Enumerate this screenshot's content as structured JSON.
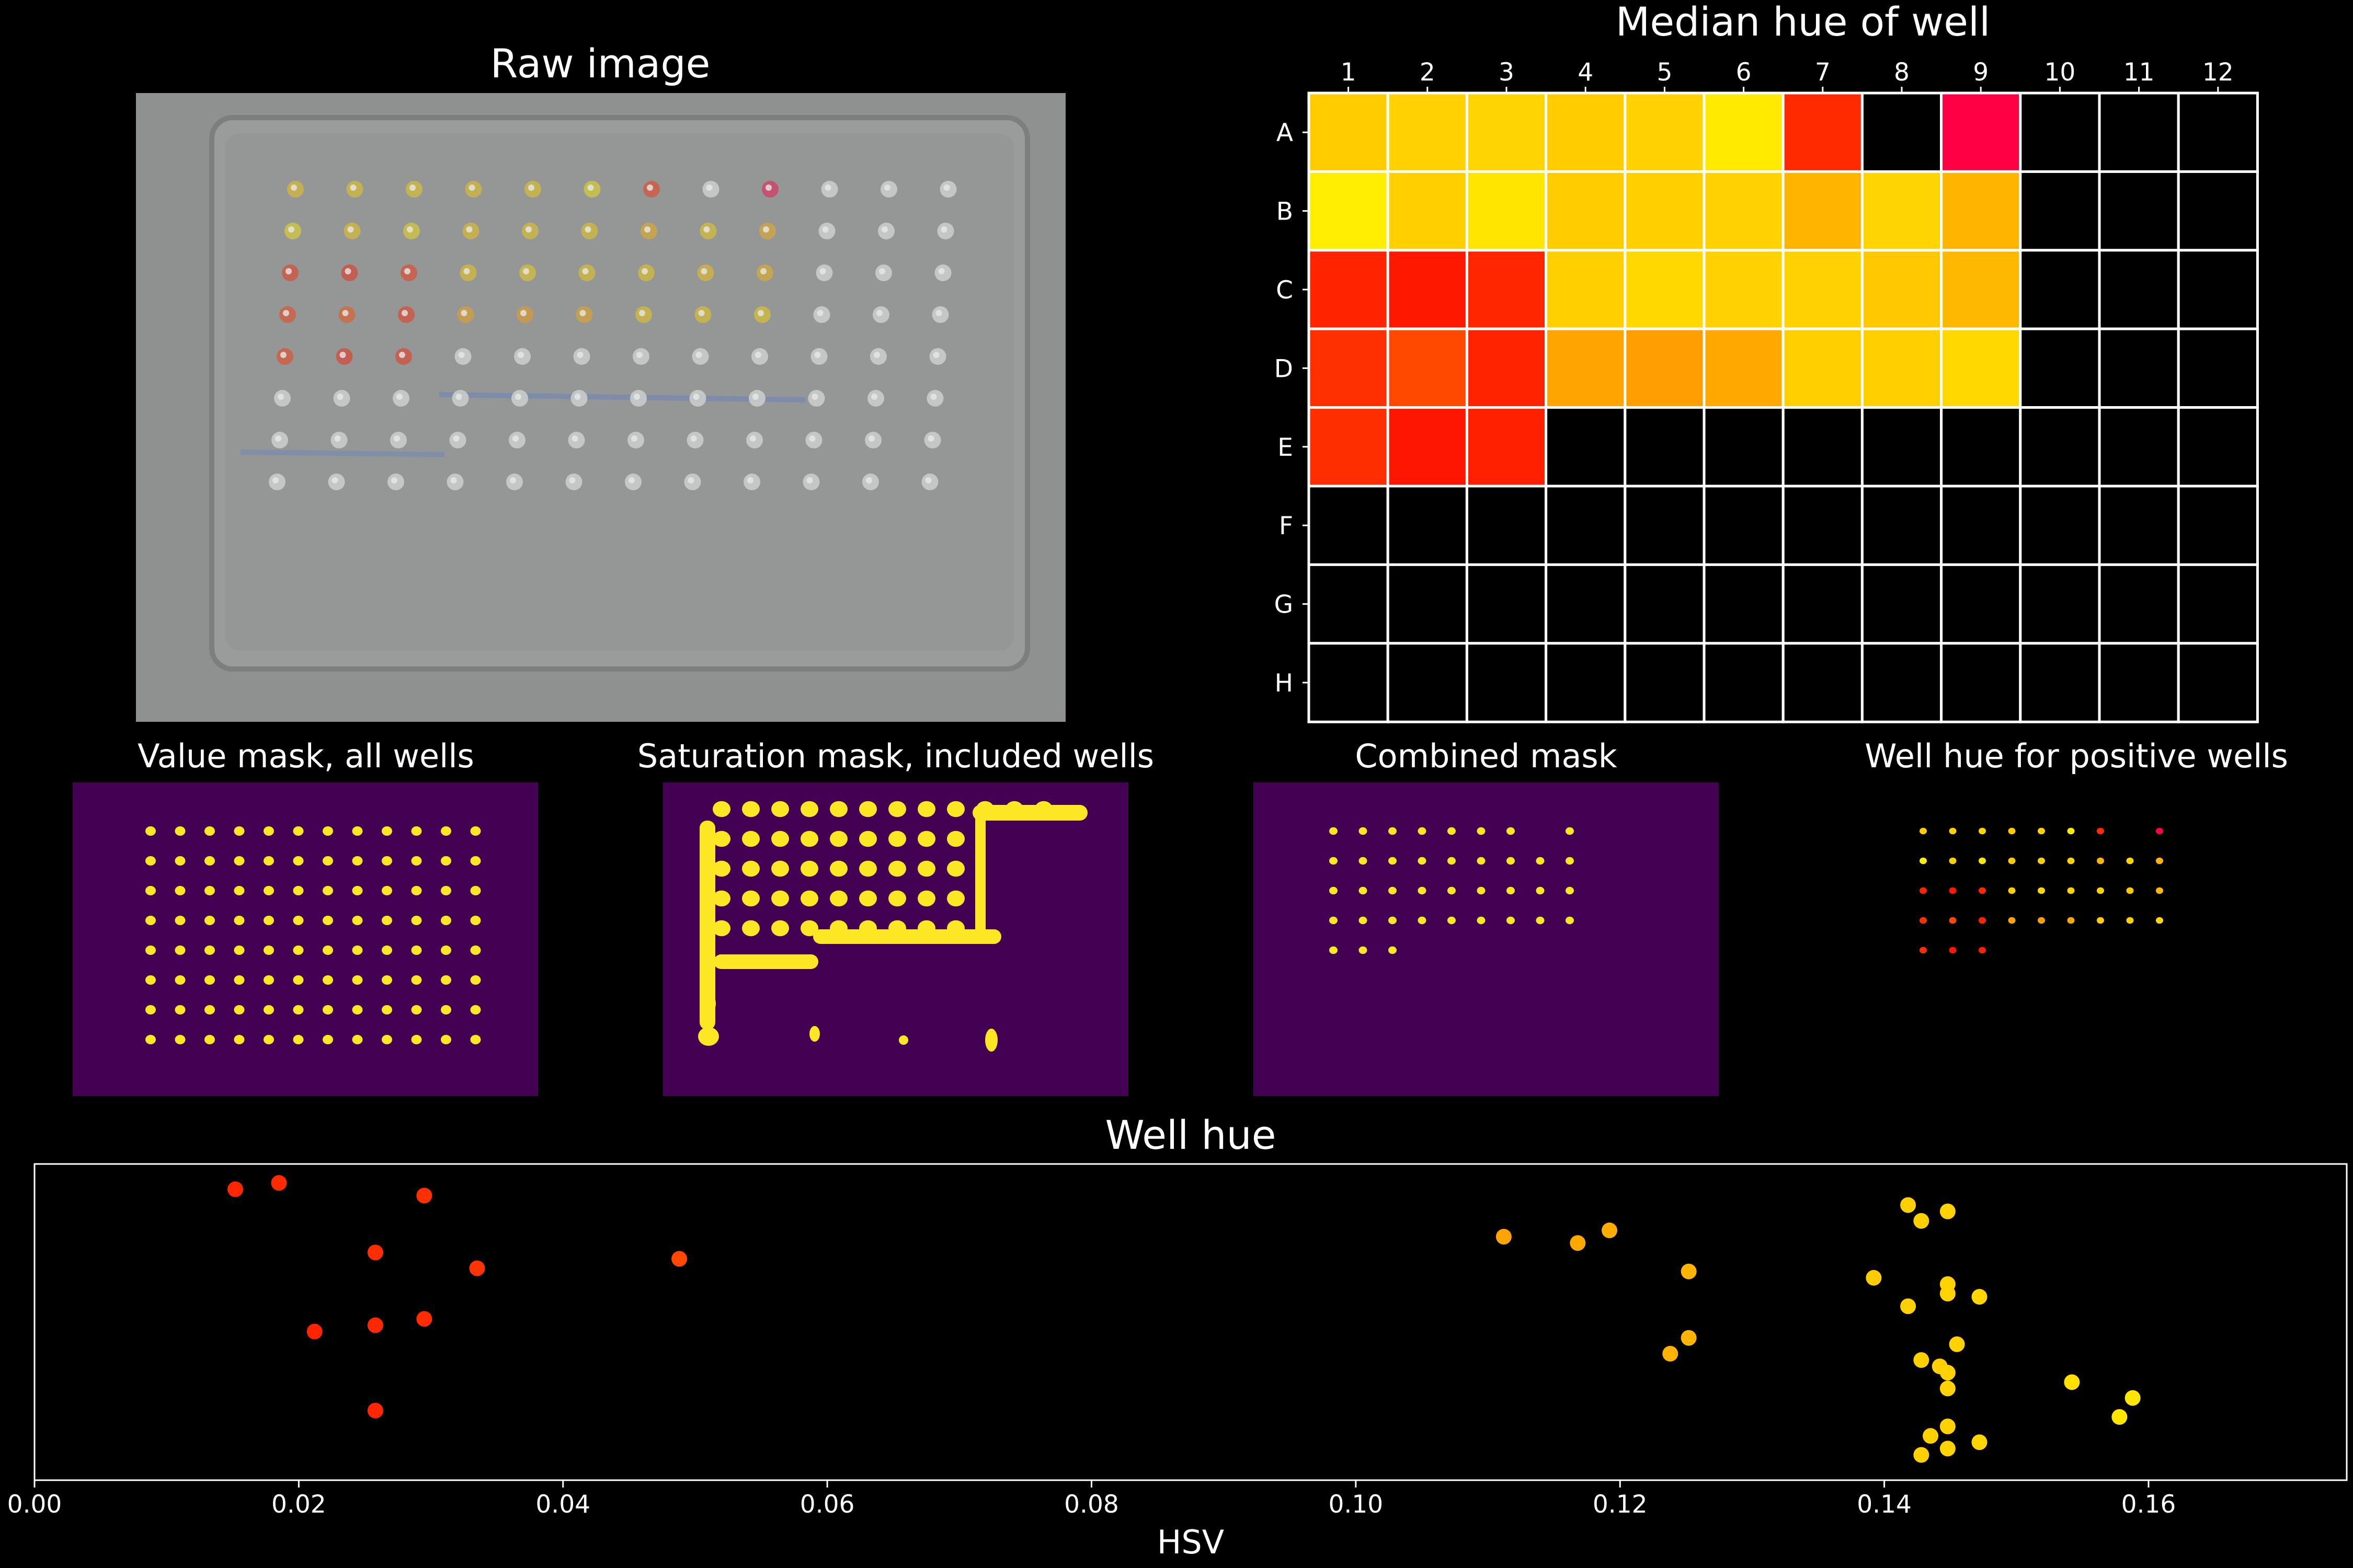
{
  "panels": {
    "raw_image": {
      "title": "Raw image"
    },
    "value_mask": {
      "title": "Value mask, all wells"
    },
    "saturation_mask": {
      "title": "Saturation mask, included wells"
    },
    "combined_mask": {
      "title": "Combined mask"
    },
    "positive_hue": {
      "title": "Well hue for positive wells"
    }
  },
  "colors": {
    "background": "#000000",
    "mask_bg": "#440154",
    "mask_fg": "#fde725",
    "grid_line": "#ffffff",
    "empty_well": "#000000",
    "plate_bg": "#8e9190"
  },
  "chart_data": [
    {
      "type": "heatmap",
      "title": "Median hue of well",
      "columns": [
        "1",
        "2",
        "3",
        "4",
        "5",
        "6",
        "7",
        "8",
        "9",
        "10",
        "11",
        "12"
      ],
      "rows": [
        "A",
        "B",
        "C",
        "D",
        "E",
        "F",
        "G",
        "H"
      ],
      "colormap": "hot",
      "cells": [
        [
          "#ffcc00",
          "#ffd200",
          "#ffd400",
          "#ffcc00",
          "#ffd200",
          "#ffea00",
          "#ff2a00",
          "#000000",
          "#ff0044",
          "#000000",
          "#000000",
          "#000000"
        ],
        [
          "#ffee00",
          "#ffd000",
          "#ffe600",
          "#ffcc00",
          "#ffd000",
          "#ffd200",
          "#ffb400",
          "#ffd400",
          "#ffb400",
          "#000000",
          "#000000",
          "#000000"
        ],
        [
          "#ff2400",
          "#ff1800",
          "#ff2600",
          "#ffd000",
          "#ffd800",
          "#ffd200",
          "#ffd200",
          "#ffc800",
          "#ffb800",
          "#000000",
          "#000000",
          "#000000"
        ],
        [
          "#ff3000",
          "#ff4800",
          "#ff2400",
          "#ffa400",
          "#ff9e00",
          "#ffa800",
          "#ffd000",
          "#ffd000",
          "#ffd800",
          "#000000",
          "#000000",
          "#000000"
        ],
        [
          "#ff2e00",
          "#ff1600",
          "#ff2000",
          "#000000",
          "#000000",
          "#000000",
          "#000000",
          "#000000",
          "#000000",
          "#000000",
          "#000000",
          "#000000"
        ],
        [
          "#000000",
          "#000000",
          "#000000",
          "#000000",
          "#000000",
          "#000000",
          "#000000",
          "#000000",
          "#000000",
          "#000000",
          "#000000",
          "#000000"
        ],
        [
          "#000000",
          "#000000",
          "#000000",
          "#000000",
          "#000000",
          "#000000",
          "#000000",
          "#000000",
          "#000000",
          "#000000",
          "#000000",
          "#000000"
        ],
        [
          "#000000",
          "#000000",
          "#000000",
          "#000000",
          "#000000",
          "#000000",
          "#000000",
          "#000000",
          "#000000",
          "#000000",
          "#000000",
          "#000000"
        ]
      ]
    },
    {
      "type": "scatter",
      "title": "Well hue",
      "xlabel": "HSV",
      "ylabel": "",
      "xlim": [
        0.0,
        0.175
      ],
      "xticks": [
        "0.00",
        "0.02",
        "0.04",
        "0.06",
        "0.08",
        "0.10",
        "0.12",
        "0.14",
        "0.16"
      ],
      "grid": false,
      "points": [
        {
          "x": 0.0152,
          "y": 0.92,
          "color": "#ff2600"
        },
        {
          "x": 0.0185,
          "y": 0.94,
          "color": "#ff2a00"
        },
        {
          "x": 0.0295,
          "y": 0.9,
          "color": "#ff3000"
        },
        {
          "x": 0.0258,
          "y": 0.72,
          "color": "#ff2e00"
        },
        {
          "x": 0.0335,
          "y": 0.67,
          "color": "#ff3400"
        },
        {
          "x": 0.0488,
          "y": 0.7,
          "color": "#ff4800"
        },
        {
          "x": 0.0212,
          "y": 0.47,
          "color": "#ff2400"
        },
        {
          "x": 0.0258,
          "y": 0.49,
          "color": "#ff2800"
        },
        {
          "x": 0.0295,
          "y": 0.51,
          "color": "#ff2c00"
        },
        {
          "x": 0.0258,
          "y": 0.22,
          "color": "#ff2600"
        },
        {
          "x": 0.1112,
          "y": 0.77,
          "color": "#ffa400"
        },
        {
          "x": 0.1168,
          "y": 0.75,
          "color": "#ffa800"
        },
        {
          "x": 0.1192,
          "y": 0.79,
          "color": "#ffac00"
        },
        {
          "x": 0.1252,
          "y": 0.66,
          "color": "#ffb400"
        },
        {
          "x": 0.1252,
          "y": 0.45,
          "color": "#ffb400"
        },
        {
          "x": 0.1238,
          "y": 0.4,
          "color": "#ffb200"
        },
        {
          "x": 0.1418,
          "y": 0.87,
          "color": "#ffd000"
        },
        {
          "x": 0.1448,
          "y": 0.85,
          "color": "#ffd200"
        },
        {
          "x": 0.1428,
          "y": 0.82,
          "color": "#ffd000"
        },
        {
          "x": 0.1392,
          "y": 0.64,
          "color": "#ffcc00"
        },
        {
          "x": 0.1448,
          "y": 0.62,
          "color": "#ffd200"
        },
        {
          "x": 0.1472,
          "y": 0.58,
          "color": "#ffd400"
        },
        {
          "x": 0.1418,
          "y": 0.55,
          "color": "#ffd000"
        },
        {
          "x": 0.1448,
          "y": 0.59,
          "color": "#ffd200"
        },
        {
          "x": 0.1455,
          "y": 0.43,
          "color": "#ffd200"
        },
        {
          "x": 0.1428,
          "y": 0.38,
          "color": "#ffd000"
        },
        {
          "x": 0.1442,
          "y": 0.36,
          "color": "#ffd000"
        },
        {
          "x": 0.1448,
          "y": 0.34,
          "color": "#ffd200"
        },
        {
          "x": 0.1448,
          "y": 0.29,
          "color": "#ffd200"
        },
        {
          "x": 0.1542,
          "y": 0.31,
          "color": "#ffe000"
        },
        {
          "x": 0.1588,
          "y": 0.26,
          "color": "#ffe600"
        },
        {
          "x": 0.1578,
          "y": 0.2,
          "color": "#ffe400"
        },
        {
          "x": 0.1448,
          "y": 0.17,
          "color": "#ffd200"
        },
        {
          "x": 0.1435,
          "y": 0.14,
          "color": "#ffd000"
        },
        {
          "x": 0.1472,
          "y": 0.12,
          "color": "#ffd400"
        },
        {
          "x": 0.1448,
          "y": 0.1,
          "color": "#ffd200"
        },
        {
          "x": 0.1428,
          "y": 0.08,
          "color": "#ffd000"
        }
      ]
    }
  ]
}
